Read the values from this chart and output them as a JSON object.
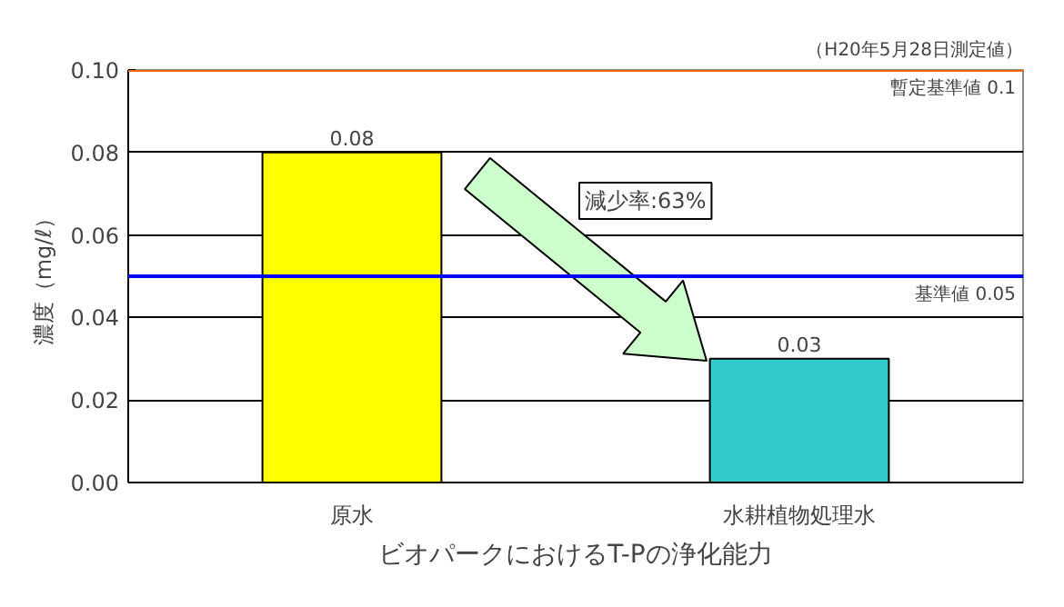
{
  "chart_data": {
    "type": "bar",
    "xlabel": "ビオパークにおけるT-Pの浄化能力",
    "ylabel": "濃度（mg/ℓ）",
    "categories": [
      "原水",
      "水耕植物処理水"
    ],
    "values": [
      0.08,
      0.03
    ],
    "colors": [
      "#ffff00",
      "#33cccc"
    ],
    "ylim": [
      0,
      0.1
    ],
    "yticks": [
      {
        "value": 0,
        "label": "0.00"
      },
      {
        "value": 0.02,
        "label": "0.02"
      },
      {
        "value": 0.04,
        "label": "0.04"
      },
      {
        "value": 0.06,
        "label": "0.06"
      },
      {
        "value": 0.08,
        "label": "0.08"
      },
      {
        "value": 0.1,
        "label": "0.10"
      }
    ],
    "grid": "y",
    "data_labels": true,
    "ref_lines": [
      {
        "axis": "y",
        "value": 0.1,
        "label": "暫定基準値 0.1",
        "color": "#ff6600"
      },
      {
        "axis": "y",
        "value": 0.05,
        "label": "基準値 0.05",
        "color": "#0000ff"
      }
    ],
    "annotations": [
      "（H20年5月28日測定値）",
      "減少率:63%"
    ]
  }
}
